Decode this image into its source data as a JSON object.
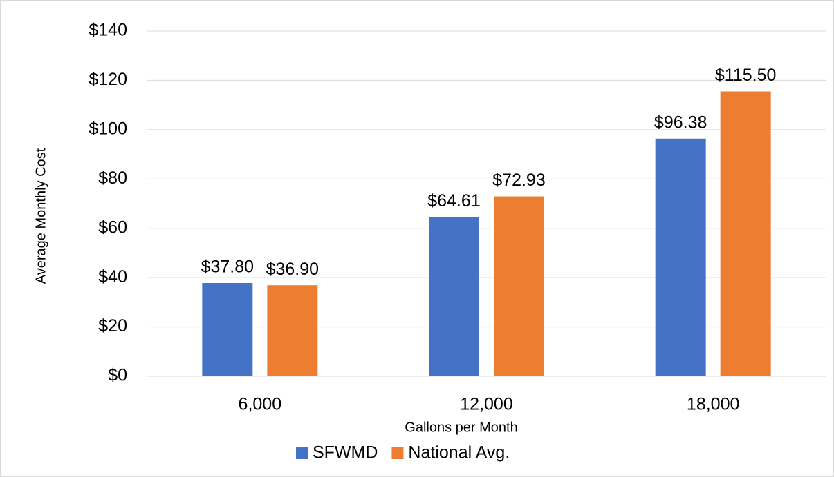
{
  "chart_data": {
    "type": "bar",
    "categories": [
      "6,000",
      "12,000",
      "18,000"
    ],
    "series": [
      {
        "name": "SFWMD",
        "color": "#4472c4",
        "values": [
          37.8,
          64.61,
          96.38
        ],
        "value_labels": [
          "$37.80",
          "$64.61",
          "$96.38"
        ]
      },
      {
        "name": "National Avg.",
        "color": "#ed7d31",
        "values": [
          36.9,
          72.93,
          115.5
        ],
        "value_labels": [
          "$36.90",
          "$72.93",
          "$115.50"
        ]
      }
    ],
    "x_label": "Gallons per Month",
    "y_label": "Average Monthly Cost",
    "ylim": [
      0,
      140
    ],
    "yticks": [
      {
        "value": 0,
        "label": "$0"
      },
      {
        "value": 20,
        "label": "$20"
      },
      {
        "value": 40,
        "label": "$40"
      },
      {
        "value": 60,
        "label": "$60"
      },
      {
        "value": 80,
        "label": "$80"
      },
      {
        "value": 100,
        "label": "$100"
      },
      {
        "value": 120,
        "label": "$120"
      },
      {
        "value": 140,
        "label": "$140"
      }
    ],
    "grid": true,
    "legend": "bottom"
  }
}
